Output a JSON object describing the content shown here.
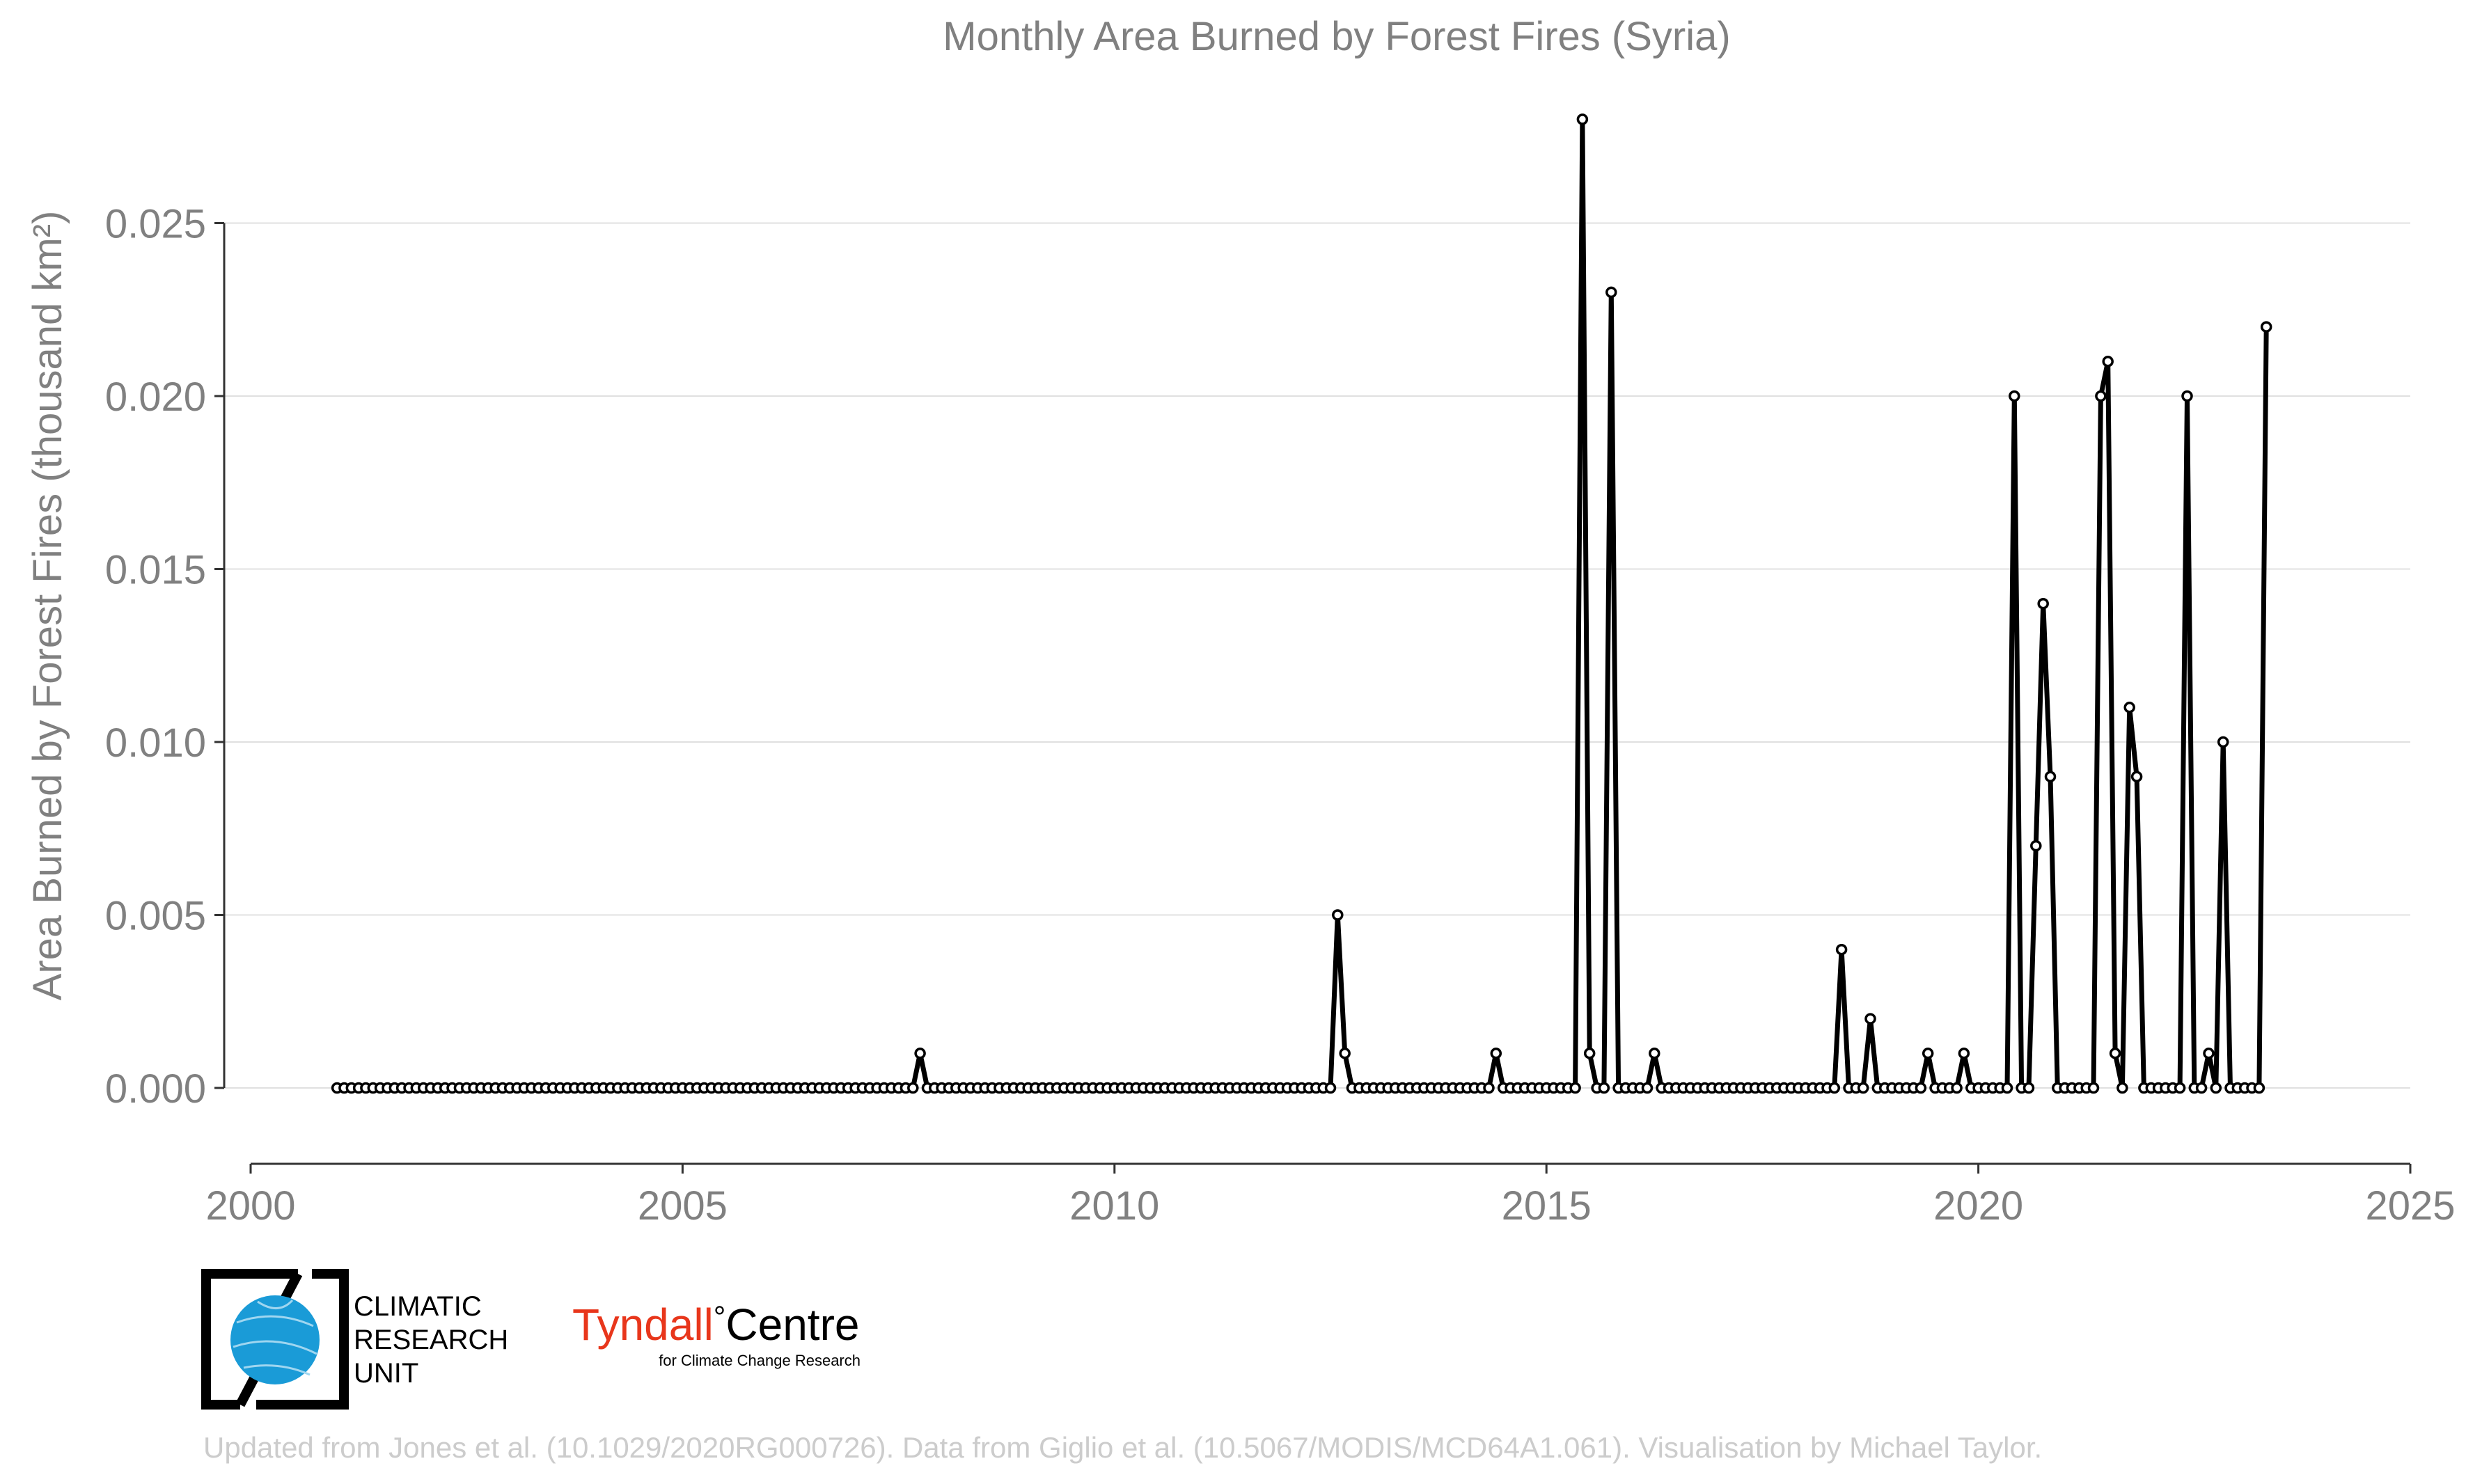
{
  "chart_data": {
    "type": "line",
    "title": "Monthly Area Burned by Forest Fires (Syria)",
    "ylabel": "Area Burned by Forest Fires (thousand km²)",
    "xlabel": "",
    "xlim": [
      2000,
      2025
    ],
    "ylim": [
      -0.002,
      0.028
    ],
    "x_ticks": [
      2000,
      2005,
      2010,
      2015,
      2020,
      2025
    ],
    "x_tick_labels": [
      "2000",
      "2005",
      "2010",
      "2015",
      "2020",
      "2025"
    ],
    "y_ticks": [
      0,
      0.005,
      0.01,
      0.015,
      0.02,
      0.025
    ],
    "y_tick_labels": [
      "0.000",
      "0.005",
      "0.010",
      "0.015",
      "0.020",
      "0.025"
    ],
    "grid": "horizontal",
    "legend": "none",
    "series": [
      {
        "start": "2001-01",
        "end": "2023-05",
        "frequency": "monthly",
        "values": [
          0,
          0,
          0,
          0,
          0,
          0,
          0,
          0,
          0,
          0,
          0,
          0,
          0,
          0,
          0,
          0,
          0,
          0,
          0,
          0,
          0,
          0,
          0,
          0,
          0,
          0,
          0,
          0,
          0,
          0,
          0,
          0,
          0,
          0,
          0,
          0,
          0,
          0,
          0,
          0,
          0,
          0,
          0,
          0,
          0,
          0,
          0,
          0,
          0,
          0,
          0,
          0,
          0,
          0,
          0,
          0,
          0,
          0,
          0,
          0,
          0,
          0,
          0,
          0,
          0,
          0,
          0,
          0,
          0,
          0,
          0,
          0,
          0,
          0,
          0,
          0,
          0,
          0,
          0,
          0,
          0,
          0.001,
          0,
          0,
          0,
          0,
          0,
          0,
          0,
          0,
          0,
          0,
          0,
          0,
          0,
          0,
          0,
          0,
          0,
          0,
          0,
          0,
          0,
          0,
          0,
          0,
          0,
          0,
          0,
          0,
          0,
          0,
          0,
          0,
          0,
          0,
          0,
          0,
          0,
          0,
          0,
          0,
          0,
          0,
          0,
          0,
          0,
          0,
          0,
          0,
          0,
          0,
          0,
          0,
          0,
          0,
          0,
          0,
          0,
          0.005,
          0.001,
          0,
          0,
          0,
          0,
          0,
          0,
          0,
          0,
          0,
          0,
          0,
          0,
          0,
          0,
          0,
          0,
          0,
          0,
          0,
          0,
          0.001,
          0,
          0,
          0,
          0,
          0,
          0,
          0,
          0,
          0,
          0,
          0,
          0.028,
          0.001,
          0,
          0,
          0.023,
          0,
          0,
          0,
          0,
          0,
          0.001,
          0,
          0,
          0,
          0,
          0,
          0,
          0,
          0,
          0,
          0,
          0,
          0,
          0,
          0,
          0,
          0,
          0,
          0,
          0,
          0,
          0,
          0,
          0,
          0,
          0,
          0.004,
          0,
          0,
          0,
          0.002,
          0,
          0,
          0,
          0,
          0,
          0,
          0,
          0.001,
          0,
          0,
          0,
          0,
          0.001,
          0,
          0,
          0,
          0,
          0,
          0,
          0.02,
          0,
          0,
          0.007,
          0.014,
          0.009,
          0,
          0,
          0,
          0,
          0,
          0,
          0.02,
          0.021,
          0.001,
          0,
          0.011,
          0.009,
          0,
          0,
          0,
          0,
          0,
          0,
          0.02,
          0,
          0,
          0.001,
          0,
          0.01,
          0,
          0,
          0,
          0,
          0,
          0.022
        ],
        "color": "#000000"
      }
    ]
  },
  "logos": {
    "cru": {
      "line1": "CLIMATIC",
      "line2": "RESEARCH",
      "line3": "UNIT",
      "color": "#1a9bd7"
    },
    "tyndall": {
      "main": "Tyndall",
      "degree": "°",
      "centre": "Centre",
      "sub": "for Climate Change Research",
      "color": "#e8361b"
    }
  },
  "footer": {
    "credit": "Updated from Jones et al. (10.1029/2020RG000726). Data from Giglio et al. (10.5067/MODIS/MCD64A1.061). Visualisation by Michael Taylor."
  },
  "colors": {
    "text_gray": "#808080",
    "grid": "#e0e0e0",
    "axis": "#333333",
    "footer_gray": "#cccccc",
    "line": "#000000"
  }
}
